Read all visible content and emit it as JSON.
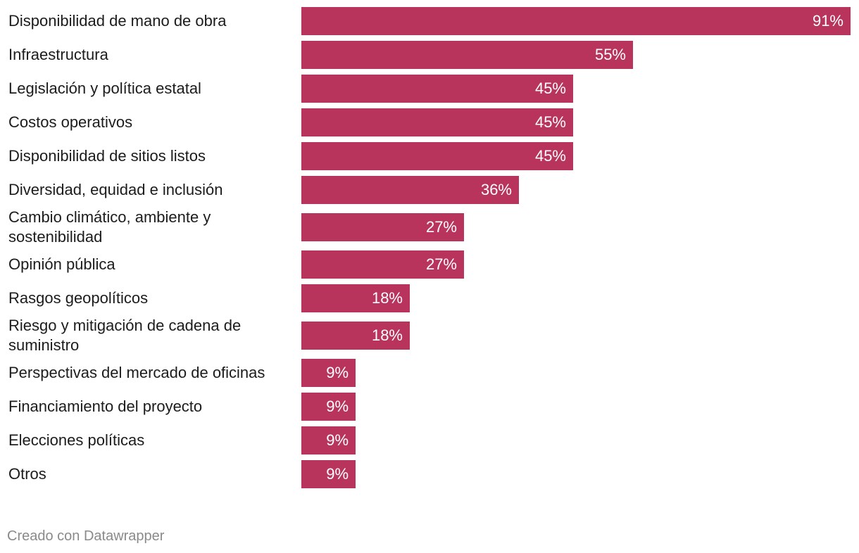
{
  "chart_data": {
    "type": "bar",
    "orientation": "horizontal",
    "title": "",
    "xlabel": "",
    "ylabel": "",
    "xlim": [
      0,
      91
    ],
    "value_suffix": "%",
    "color": "#b8345d",
    "categories": [
      "Disponibilidad de mano de obra",
      "Infraestructura",
      "Legislación y política estatal",
      "Costos operativos",
      "Disponibilidad de sitios listos",
      "Diversidad, equidad e inclusión",
      "Cambio climático, ambiente y sostenibilidad",
      "Opinión pública",
      "Rasgos geopolíticos",
      "Riesgo y mitigación de cadena de suministro",
      "Perspectivas del mercado de oficinas",
      "Financiamiento del proyecto",
      "Elecciones políticas",
      "Otros"
    ],
    "values": [
      91,
      55,
      45,
      45,
      45,
      36,
      27,
      27,
      18,
      18,
      9,
      9,
      9,
      9
    ],
    "value_labels": [
      "91%",
      "55%",
      "45%",
      "45%",
      "45%",
      "36%",
      "27%",
      "27%",
      "18%",
      "18%",
      "9%",
      "9%",
      "9%",
      "9%"
    ]
  },
  "footer": {
    "credit": "Creado con Datawrapper"
  }
}
